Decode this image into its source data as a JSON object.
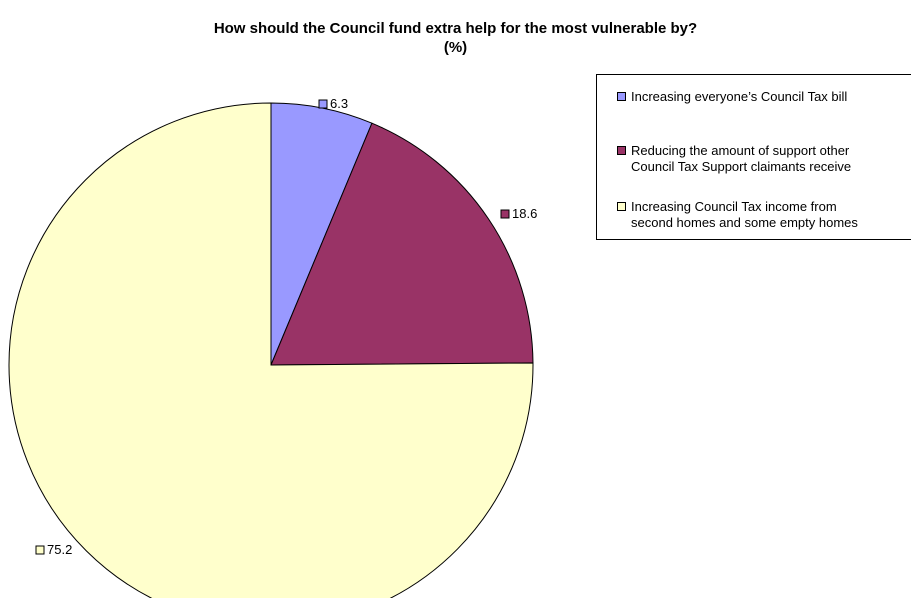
{
  "chart_data": {
    "type": "pie",
    "title": "How should the Council fund extra help for the most vulnerable by?",
    "subtitle": "(%)",
    "categories": [
      "Increasing everyone’s Council Tax bill",
      "Reducing the amount of support other Council Tax Support claimants receive",
      "Increasing Council Tax income from second homes and some empty homes"
    ],
    "legend_lines": [
      [
        "Increasing everyone’s Council Tax bill"
      ],
      [
        "Reducing the amount of support other",
        "Council Tax Support claimants receive"
      ],
      [
        "Increasing Council Tax income from",
        "second homes and some empty homes"
      ]
    ],
    "values": [
      6.3,
      18.6,
      75.2
    ],
    "data_labels": [
      "6.3",
      "18.6",
      "75.2"
    ],
    "colors": [
      "#9999ff",
      "#993366",
      "#ffffcc"
    ],
    "legend_position": "top-right"
  }
}
